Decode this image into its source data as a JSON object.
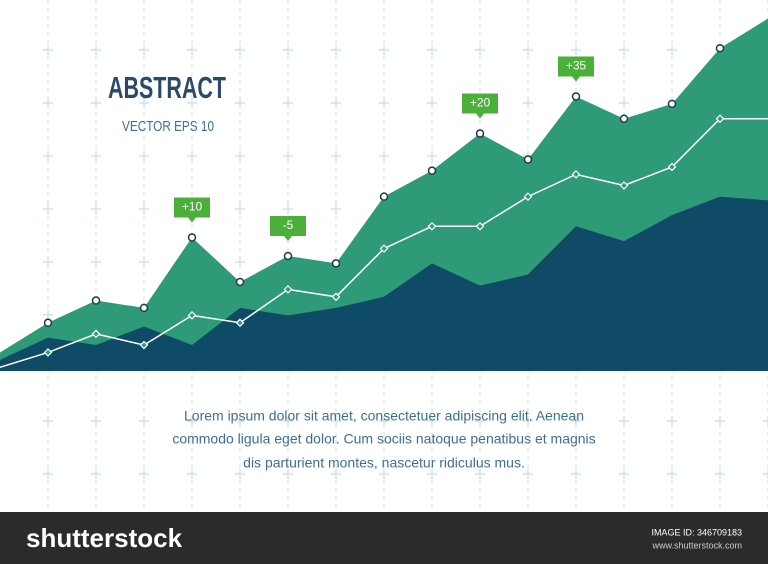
{
  "chart_data": {
    "type": "area",
    "title": "ABSTRACT",
    "subtitle": "VECTOR EPS 10",
    "ylim": [
      0,
      100
    ],
    "series": [
      {
        "color": "#2e9a78",
        "values": [
          5,
          13,
          19,
          17,
          36,
          24,
          31,
          29,
          47,
          54,
          64,
          57,
          74,
          68,
          72,
          87,
          95
        ]
      },
      {
        "color": "#ffffff",
        "values": [
          1,
          5,
          10,
          7,
          15,
          13,
          22,
          20,
          33,
          39,
          39,
          47,
          53,
          50,
          55,
          68,
          68
        ]
      },
      {
        "color": "#0f4a66",
        "values": [
          3,
          9,
          7,
          12,
          7,
          17,
          15,
          17,
          20,
          29,
          23,
          26,
          39,
          35,
          42,
          47,
          46
        ]
      }
    ],
    "annotations": [
      "+10",
      "-5",
      "+20",
      "+35"
    ]
  },
  "body": {
    "lines": [
      "Lorem ipsum dolor sit amet, consectetuer adipiscing elit. Aenean",
      "commodo ligula eget dolor. Cum sociis natoque penatibus et magnis",
      "dis parturient montes, nascetur ridiculus mus."
    ]
  },
  "footer": {
    "logo": "shutterstock",
    "image_id": "IMAGE ID: 346709183",
    "url": "www.shutterstock.com"
  }
}
